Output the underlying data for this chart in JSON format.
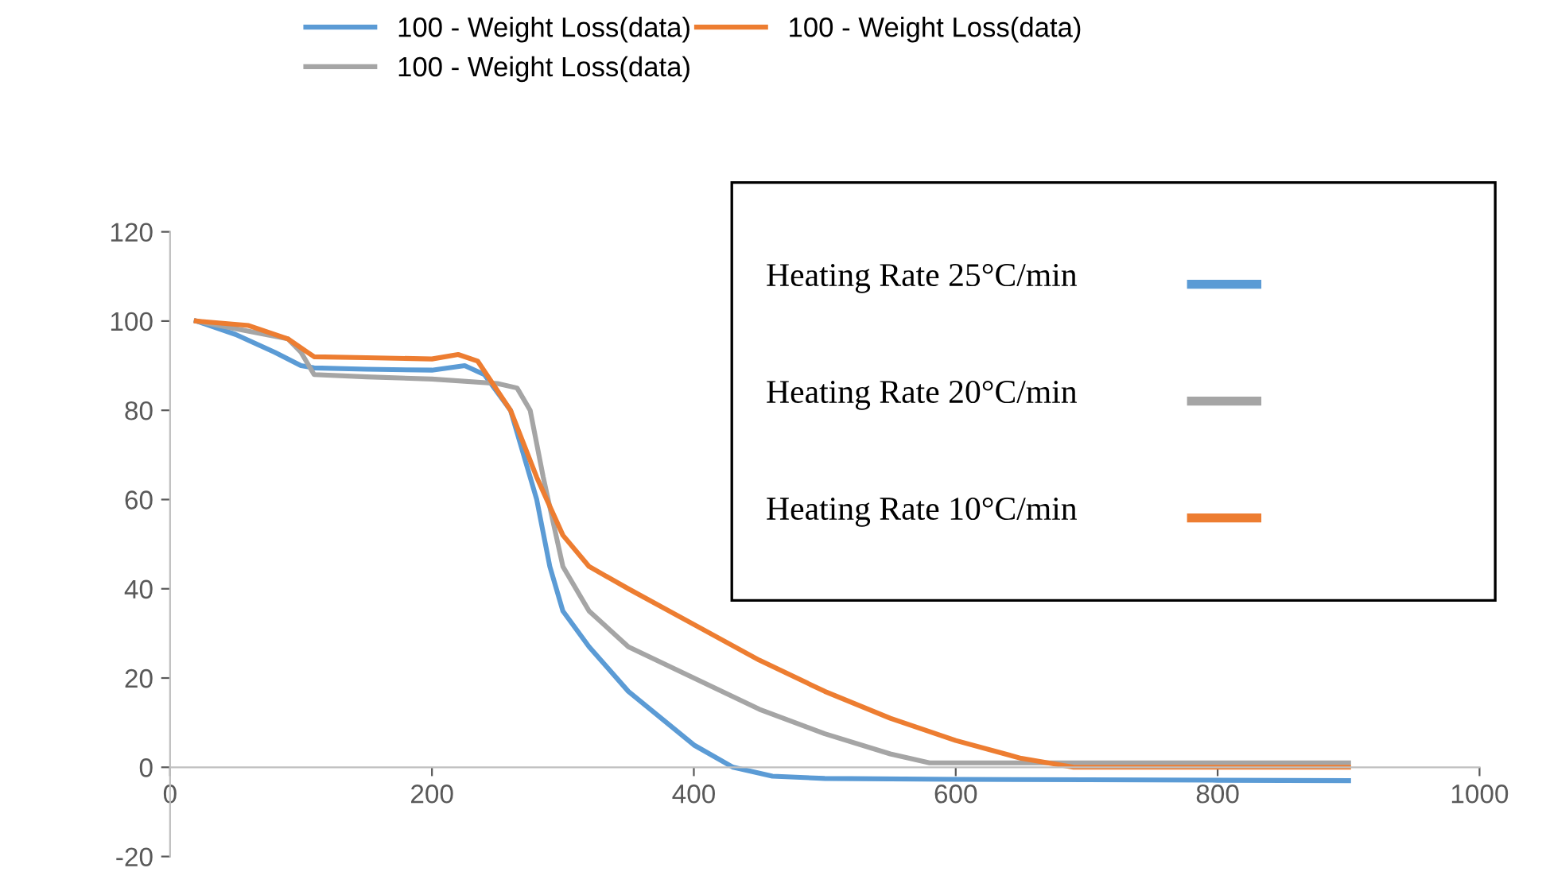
{
  "chart_data": {
    "type": "line",
    "xlim": [
      0,
      1000
    ],
    "xticks": [
      0,
      200,
      400,
      600,
      800,
      1000
    ],
    "ylim": [
      -20,
      120
    ],
    "yticks": [
      -20,
      0,
      20,
      40,
      60,
      80,
      100,
      120
    ],
    "grid": false,
    "legend": "top",
    "marker": "none",
    "line_style": "solid",
    "series": [
      {
        "name": "100 - Weight Loss(data)",
        "color": "#5b9bd5",
        "x": [
          20,
          50,
          80,
          100,
          110,
          150,
          200,
          225,
          240,
          260,
          280,
          290,
          300,
          320,
          350,
          400,
          430,
          460,
          500,
          600,
          700,
          800,
          900
        ],
        "values": [
          100,
          97,
          93,
          90,
          89.5,
          89.2,
          89,
          90,
          88,
          80,
          60,
          45,
          35,
          27,
          17,
          5,
          0,
          -2,
          -2.5,
          -2.7,
          -2.8,
          -2.9,
          -3
        ]
      },
      {
        "name": "100 - Weight Loss(data)",
        "color": "#a5a5a5",
        "x": [
          20,
          90,
          100,
          110,
          150,
          200,
          250,
          265,
          275,
          285,
          300,
          320,
          350,
          400,
          450,
          500,
          550,
          580,
          700,
          800,
          900
        ],
        "values": [
          100,
          96,
          93,
          88,
          87.5,
          87,
          86,
          85,
          80,
          65,
          45,
          35,
          27,
          20,
          13,
          7.5,
          3,
          1,
          1,
          1,
          1
        ]
      },
      {
        "name": "100 - Weight Loss(data)",
        "color": "#ed7d31",
        "x": [
          20,
          60,
          90,
          105,
          110,
          150,
          200,
          220,
          235,
          260,
          280,
          300,
          320,
          350,
          400,
          450,
          500,
          550,
          600,
          650,
          690,
          800,
          900
        ],
        "values": [
          100,
          99,
          96,
          93,
          92,
          91.8,
          91.5,
          92.5,
          91,
          80,
          65,
          52,
          45,
          40,
          32,
          24,
          17,
          11,
          6,
          2,
          0,
          0,
          0
        ]
      }
    ],
    "annotations": [
      "Heating Rate 25°C/min",
      "Heating Rate 20°C/min",
      "Heating Rate 10°C/min"
    ]
  }
}
